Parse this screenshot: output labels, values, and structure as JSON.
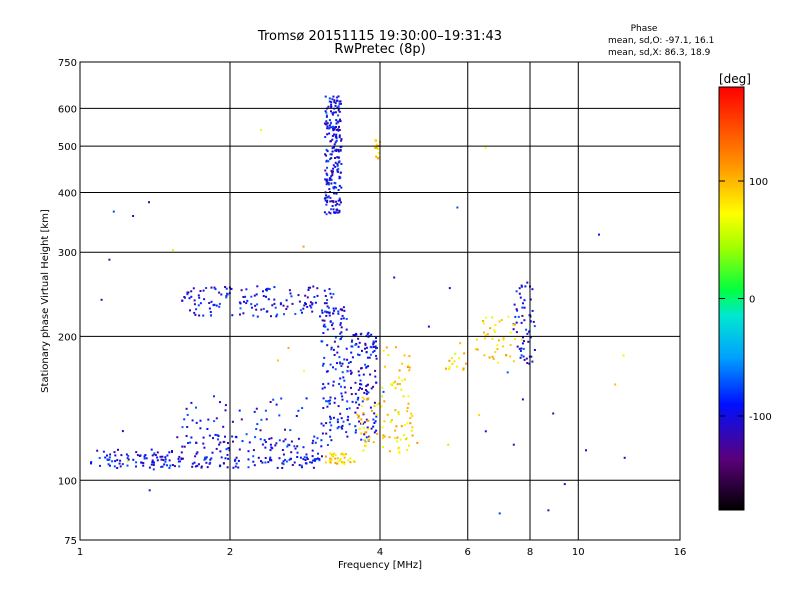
{
  "chart_data": {
    "type": "scatter",
    "title": "Tromsø 20151115 19:30:00–19:31:43",
    "subtitle": "RwPretec (8p)",
    "xlabel": "Frequency [MHz]",
    "ylabel": "Stationary phase Virtual Height [km]",
    "xscale": "log",
    "yscale": "log",
    "xlim": [
      1,
      16
    ],
    "ylim": [
      75,
      750
    ],
    "xticks": [
      1,
      2,
      4,
      6,
      8,
      10,
      16
    ],
    "yticks": [
      75,
      100,
      200,
      300,
      400,
      500,
      600,
      750
    ],
    "grid": true,
    "legend": {
      "title": "Phase",
      "line1": "mean, sd,O:  -97.1, 16.1",
      "line2": "mean, sd,X:   86.3, 18.9",
      "placement": "top-right"
    },
    "colorbar": {
      "unit": "[deg]",
      "range": [
        -180,
        180
      ],
      "ticks": [
        100,
        0,
        -100
      ]
    },
    "series": [
      {
        "name": "O",
        "phase_deg": -97,
        "regions": [
          {
            "x": [
              1.05,
              1.5
            ],
            "y": [
              106,
              116
            ],
            "n": 70
          },
          {
            "x": [
              1.45,
              3.0
            ],
            "y": [
              106,
              112
            ],
            "n": 90
          },
          {
            "x": [
              1.5,
              3.2
            ],
            "y": [
              110,
              125
            ],
            "n": 90
          },
          {
            "x": [
              1.6,
              2.9
            ],
            "y": [
              114,
              150
            ],
            "n": 60
          },
          {
            "x": [
              1.6,
              3.3
            ],
            "y": [
              220,
              255
            ],
            "n": 150
          },
          {
            "x": [
              3.1,
              3.35
            ],
            "y": [
              360,
              640
            ],
            "n": 220
          },
          {
            "x": [
              3.05,
              3.45
            ],
            "y": [
              125,
              230
            ],
            "n": 130
          },
          {
            "x": [
              3.45,
              3.95
            ],
            "y": [
              120,
              205
            ],
            "n": 130
          },
          {
            "x": [
              7.4,
              8.2
            ],
            "y": [
              175,
              260
            ],
            "n": 60
          },
          {
            "x": [
              1.1,
              12.5
            ],
            "y": [
              80,
              420
            ],
            "n": 30
          }
        ]
      },
      {
        "name": "X",
        "phase_deg": 86,
        "regions": [
          {
            "x": [
              3.1,
              3.6
            ],
            "y": [
              108,
              114
            ],
            "n": 40
          },
          {
            "x": [
              3.6,
              4.7
            ],
            "y": [
              114,
              150
            ],
            "n": 80
          },
          {
            "x": [
              4.0,
              4.6
            ],
            "y": [
              150,
              190
            ],
            "n": 25
          },
          {
            "x": [
              3.9,
              4.0
            ],
            "y": [
              470,
              520
            ],
            "n": 15
          },
          {
            "x": [
              6.2,
              7.5
            ],
            "y": [
              175,
              220
            ],
            "n": 40
          },
          {
            "x": [
              5.4,
              6.0
            ],
            "y": [
              170,
              185
            ],
            "n": 15
          },
          {
            "x": [
              1.1,
              14.0
            ],
            "y": [
              85,
              680
            ],
            "n": 15
          }
        ]
      }
    ]
  }
}
